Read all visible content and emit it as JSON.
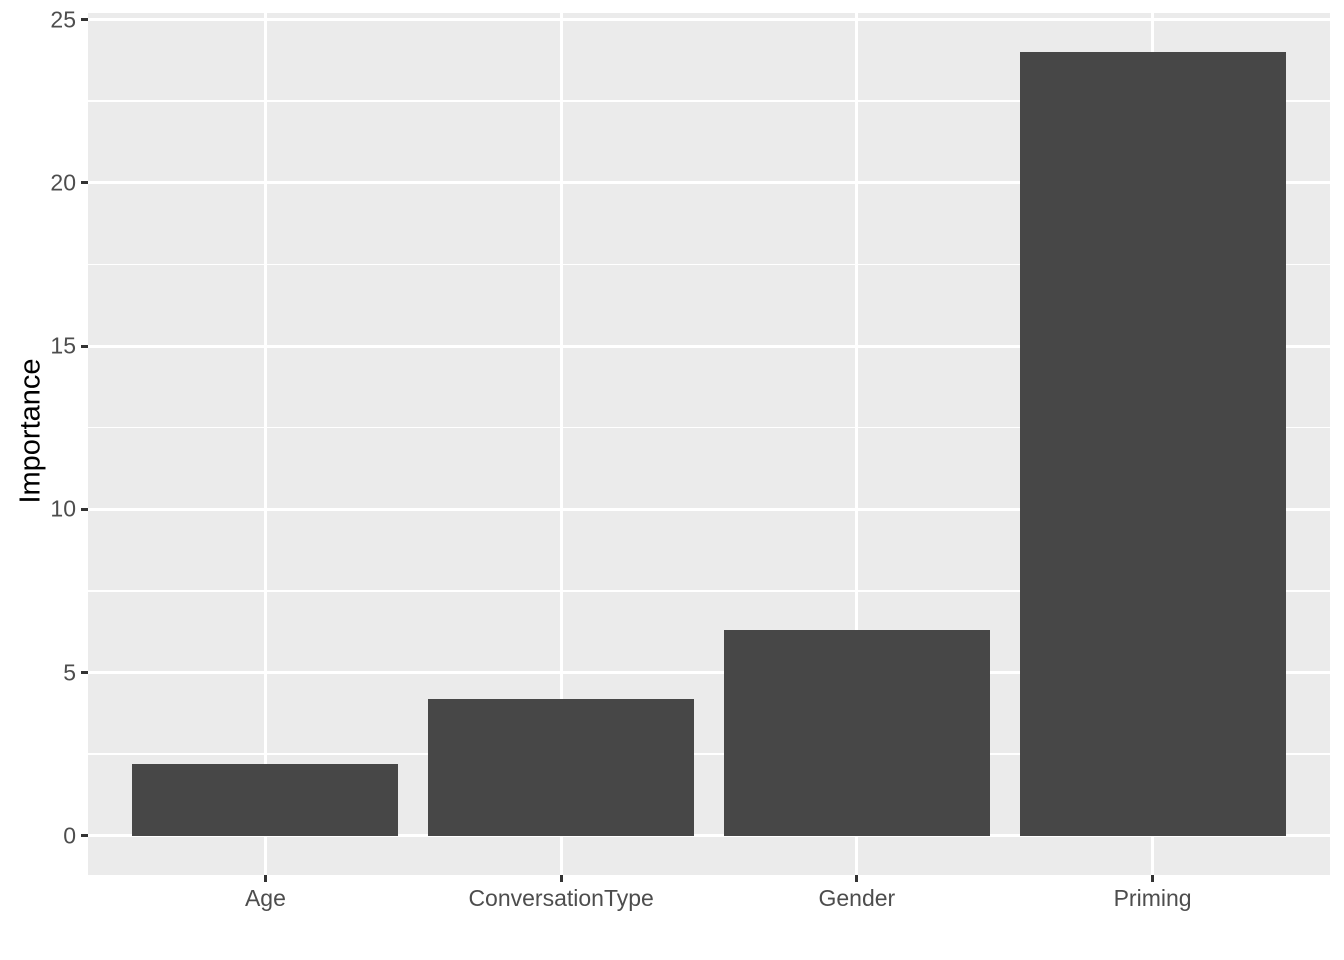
{
  "chart_data": {
    "type": "bar",
    "categories": [
      "Age",
      "ConversationType",
      "Gender",
      "Priming"
    ],
    "values": [
      2.2,
      4.2,
      6.3,
      24.0
    ],
    "title": "",
    "xlabel": "",
    "ylabel": "Importance",
    "ylim": [
      0,
      25
    ],
    "yticks": [
      0,
      5,
      10,
      15,
      20,
      25
    ],
    "ytick_labels": [
      "0",
      "5",
      "10",
      "15",
      "20",
      "25"
    ],
    "grid": "horizontal major+minor, vertical major at category centers",
    "legend_position": "none",
    "style": {
      "bar_fill": "#474747",
      "panel_background": "#EBEBEB",
      "gridline_color": "#FFFFFF",
      "axis_text_color": "#4D4D4D",
      "axis_title_color": "#000000",
      "tick_mark_color": "#333333",
      "figure_background": "#FFFFFF"
    }
  }
}
